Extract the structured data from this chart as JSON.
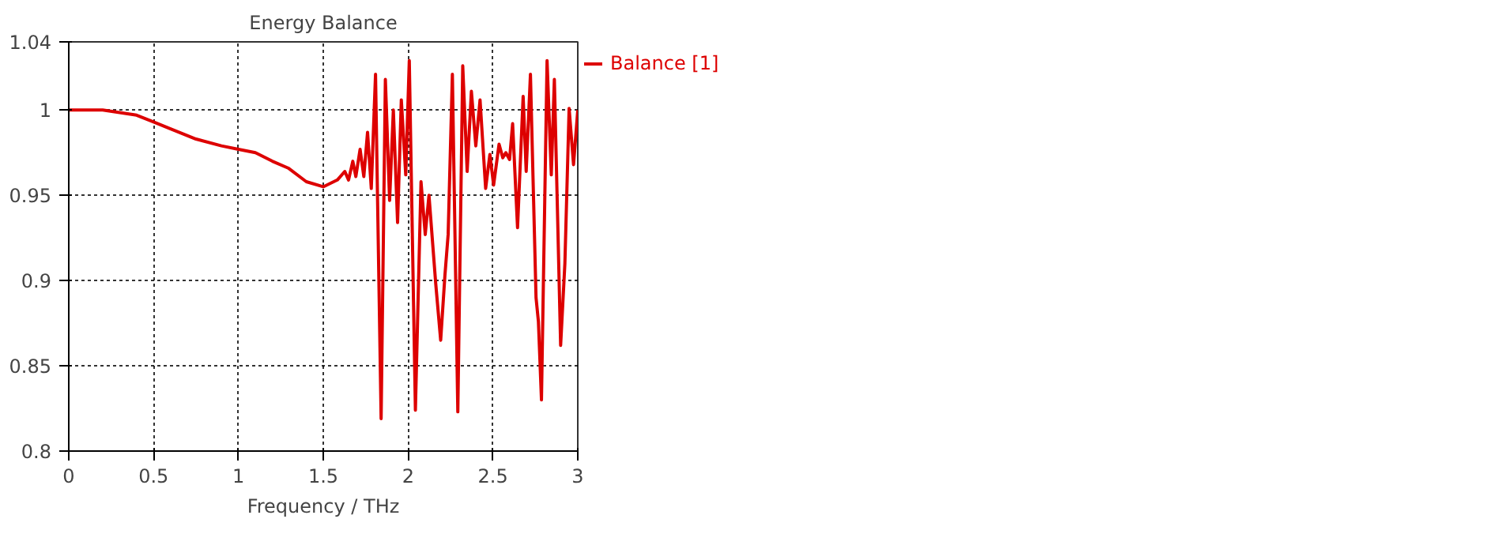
{
  "chart_data": {
    "type": "line",
    "title": "Energy Balance",
    "xlabel": "Frequency / THz",
    "xlim": [
      0,
      3
    ],
    "ylim": [
      0.8,
      1.04
    ],
    "xticks": [
      0,
      0.5,
      1,
      1.5,
      2,
      2.5,
      3
    ],
    "yticks": [
      0.8,
      0.85,
      0.9,
      0.95,
      1,
      1.04
    ],
    "grid": true,
    "legend": "right",
    "marker": "none",
    "line_style": "solid",
    "series": [
      {
        "name": "Balance [1]",
        "color": "#dd0000",
        "x": [
          0,
          0.2,
          0.4,
          0.5,
          0.6,
          0.75,
          0.9,
          1.0,
          1.1,
          1.2,
          1.293,
          1.4,
          1.5,
          1.583,
          1.627,
          1.649,
          1.674,
          1.692,
          1.717,
          1.739,
          1.761,
          1.783,
          1.808,
          1.841,
          1.866,
          1.891,
          1.913,
          1.938,
          1.96,
          1.986,
          2.007,
          2.043,
          2.076,
          2.101,
          2.123,
          2.163,
          2.192,
          2.217,
          2.236,
          2.261,
          2.293,
          2.322,
          2.348,
          2.373,
          2.399,
          2.424,
          2.457,
          2.482,
          2.504,
          2.536,
          2.558,
          2.576,
          2.598,
          2.616,
          2.645,
          2.678,
          2.696,
          2.721,
          2.754,
          2.768,
          2.786,
          2.819,
          2.844,
          2.862,
          2.899,
          2.924,
          2.949,
          2.975,
          3.0
        ],
        "values": [
          1.0,
          1.0,
          0.997,
          0.993,
          0.989,
          0.983,
          0.979,
          0.977,
          0.975,
          0.97,
          0.966,
          0.958,
          0.955,
          0.959,
          0.964,
          0.959,
          0.97,
          0.961,
          0.977,
          0.961,
          0.987,
          0.954,
          1.021,
          0.819,
          1.018,
          0.947,
          1.0,
          0.934,
          1.006,
          0.962,
          1.029,
          0.824,
          0.958,
          0.927,
          0.95,
          0.898,
          0.865,
          0.903,
          0.927,
          1.021,
          0.823,
          1.026,
          0.964,
          1.011,
          0.979,
          1.006,
          0.954,
          0.974,
          0.956,
          0.98,
          0.972,
          0.975,
          0.971,
          0.992,
          0.931,
          1.008,
          0.964,
          1.021,
          0.89,
          0.876,
          0.83,
          1.029,
          0.962,
          1.018,
          0.862,
          0.91,
          1.001,
          0.968,
          1.0
        ]
      }
    ]
  }
}
